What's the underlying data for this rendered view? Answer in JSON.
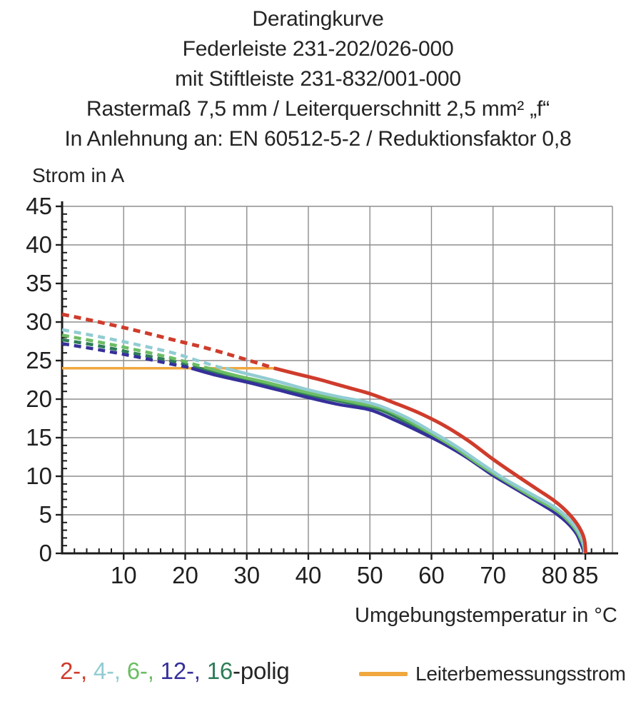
{
  "title": {
    "lines": [
      "Deratingkurve",
      "Federleiste 231-202/026-000",
      "mit Stiftleiste 231-832/001-000",
      "Rastermaß 7,5 mm / Leiterquerschnitt 2,5 mm² „f“",
      "In Anlehnung an: EN 60512-5-2 / Reduktionsfaktor 0,8"
    ]
  },
  "legend": {
    "parts": [
      {
        "text": "2-,",
        "color": "#cf3c2c"
      },
      {
        "text": " 4-,",
        "color": "#92ccd3"
      },
      {
        "text": " 6-,",
        "color": "#6cbd64"
      },
      {
        "text": " 12-,",
        "color": "#36309a"
      },
      {
        "text": " 16",
        "color": "#2e7d57"
      },
      {
        "text": "-polig",
        "color": "#242424"
      }
    ],
    "rated_current_label": "Leiterbemessungsstrom",
    "rated_current_color": "#f0a73e"
  },
  "chart_data": {
    "type": "line",
    "title": "Deratingkurve",
    "xlabel": "Umgebungstemperatur in °C",
    "ylabel": "Strom in A",
    "xlim": [
      0,
      89.4
    ],
    "ylim": [
      0,
      45
    ],
    "x_major_ticks": [
      10,
      20,
      30,
      40,
      50,
      60,
      70,
      80,
      85
    ],
    "x_minor_step": 2,
    "y_major_ticks": [
      0,
      5,
      10,
      15,
      20,
      25,
      30,
      35,
      40,
      45
    ],
    "y_minor_step": 1,
    "grid": {
      "x_lines": [
        10,
        20,
        30,
        40,
        50,
        60,
        70,
        80,
        89.4
      ],
      "y_lines": [
        5,
        10,
        15,
        20,
        25,
        30,
        35,
        40,
        45
      ],
      "color": "#8d8d8d"
    },
    "axis_color": "#1c1c1c",
    "legend_position": "bottom",
    "series": [
      {
        "name": "Leiterbemessungsstrom",
        "color": "#f0a73e",
        "width": 3.5,
        "segments": [
          {
            "dashed": false,
            "points": [
              [
                0,
                24
              ],
              [
                34.5,
                24
              ]
            ]
          }
        ]
      },
      {
        "name": "16-polig",
        "color": "#2e7d57",
        "width": 4.5,
        "segments": [
          {
            "dashed": true,
            "points": [
              [
                0,
                27.7
              ],
              [
                6,
                26.9
              ],
              [
                12,
                25.9
              ],
              [
                18,
                24.9
              ],
              [
                21,
                24.3
              ],
              [
                22.3,
                24
              ]
            ]
          },
          {
            "dashed": false,
            "points": [
              [
                22.3,
                24
              ],
              [
                26,
                23.2
              ],
              [
                31,
                22.4
              ],
              [
                36,
                21.4
              ],
              [
                41,
                20.4
              ],
              [
                46,
                19.6
              ],
              [
                51,
                18.8
              ],
              [
                55,
                17.4
              ],
              [
                60,
                15.3
              ],
              [
                64,
                13.4
              ],
              [
                68,
                11.2
              ],
              [
                72,
                9.2
              ],
              [
                76,
                7.3
              ],
              [
                80,
                5.5
              ],
              [
                82,
                4.2
              ],
              [
                83.5,
                2.8
              ],
              [
                84.2,
                1.6
              ],
              [
                84.7,
                0.6
              ],
              [
                84.8,
                0
              ]
            ]
          }
        ]
      },
      {
        "name": "12-polig",
        "color": "#36309a",
        "width": 4.5,
        "segments": [
          {
            "dashed": true,
            "points": [
              [
                0,
                27.2
              ],
              [
                6,
                26.4
              ],
              [
                12,
                25.5
              ],
              [
                18,
                24.5
              ],
              [
                20,
                24.2
              ],
              [
                21,
                24
              ]
            ]
          },
          {
            "dashed": false,
            "points": [
              [
                21,
                24
              ],
              [
                25,
                23.1
              ],
              [
                30,
                22.2
              ],
              [
                35,
                21.2
              ],
              [
                40,
                20.2
              ],
              [
                45,
                19.3
              ],
              [
                50,
                18.6
              ],
              [
                54,
                17.3
              ],
              [
                58,
                15.8
              ],
              [
                62,
                14.2
              ],
              [
                66,
                12.3
              ],
              [
                70,
                10.1
              ],
              [
                74,
                8.2
              ],
              [
                78,
                6.3
              ],
              [
                80,
                5.3
              ],
              [
                82,
                4.0
              ],
              [
                83.5,
                2.6
              ],
              [
                84.2,
                1.4
              ],
              [
                84.65,
                0.5
              ],
              [
                84.75,
                0
              ]
            ]
          }
        ]
      },
      {
        "name": "6-polig",
        "color": "#6cbd64",
        "width": 4.5,
        "segments": [
          {
            "dashed": true,
            "points": [
              [
                0,
                28.3
              ],
              [
                6,
                27.4
              ],
              [
                12,
                26.4
              ],
              [
                18,
                25.3
              ],
              [
                22,
                24.4
              ],
              [
                23.8,
                24
              ]
            ]
          },
          {
            "dashed": false,
            "points": [
              [
                23.8,
                24
              ],
              [
                28,
                23.1
              ],
              [
                33,
                22.2
              ],
              [
                38,
                21.2
              ],
              [
                43,
                20.3
              ],
              [
                48,
                19.5
              ],
              [
                52,
                18.8
              ],
              [
                56,
                17.3
              ],
              [
                60,
                15.5
              ],
              [
                64,
                13.6
              ],
              [
                68,
                11.4
              ],
              [
                72,
                9.4
              ],
              [
                76,
                7.5
              ],
              [
                80,
                5.7
              ],
              [
                82,
                4.4
              ],
              [
                83.5,
                3.0
              ],
              [
                84.3,
                1.8
              ],
              [
                84.75,
                0.8
              ],
              [
                84.85,
                0
              ]
            ]
          }
        ]
      },
      {
        "name": "4-polig",
        "color": "#92ccd3",
        "width": 4.5,
        "segments": [
          {
            "dashed": true,
            "points": [
              [
                0,
                29
              ],
              [
                6,
                28.1
              ],
              [
                12,
                27.1
              ],
              [
                18,
                26.0
              ],
              [
                22,
                25.0
              ],
              [
                25.5,
                24.15
              ],
              [
                26.5,
                24
              ]
            ]
          },
          {
            "dashed": false,
            "points": [
              [
                26.5,
                24
              ],
              [
                30,
                23.3
              ],
              [
                35,
                22.3
              ],
              [
                40,
                21.2
              ],
              [
                45,
                20.3
              ],
              [
                49,
                19.7
              ],
              [
                52,
                19.0
              ],
              [
                56,
                17.6
              ],
              [
                60,
                15.8
              ],
              [
                64,
                13.9
              ],
              [
                68,
                11.7
              ],
              [
                72,
                9.6
              ],
              [
                76,
                7.8
              ],
              [
                80,
                6.0
              ],
              [
                82,
                4.7
              ],
              [
                83.5,
                3.3
              ],
              [
                84.4,
                2.0
              ],
              [
                84.8,
                0.9
              ],
              [
                84.9,
                0
              ]
            ]
          }
        ]
      },
      {
        "name": "2-polig",
        "color": "#cf3c2c",
        "width": 5,
        "segments": [
          {
            "dashed": true,
            "points": [
              [
                0,
                31
              ],
              [
                6,
                30
              ],
              [
                12,
                28.9
              ],
              [
                18,
                27.7
              ],
              [
                24,
                26.5
              ],
              [
                30,
                25.1
              ],
              [
                34.5,
                24
              ]
            ]
          },
          {
            "dashed": false,
            "points": [
              [
                34.5,
                24
              ],
              [
                38,
                23.3
              ],
              [
                42,
                22.5
              ],
              [
                46,
                21.6
              ],
              [
                50,
                20.7
              ],
              [
                54,
                19.5
              ],
              [
                58,
                18.2
              ],
              [
                62,
                16.6
              ],
              [
                66,
                14.6
              ],
              [
                70,
                12.2
              ],
              [
                74,
                10.0
              ],
              [
                77,
                8.4
              ],
              [
                80,
                6.8
              ],
              [
                82,
                5.4
              ],
              [
                83.5,
                4.0
              ],
              [
                84.5,
                2.6
              ],
              [
                84.9,
                1.5
              ],
              [
                85.05,
                0
              ]
            ]
          }
        ]
      }
    ]
  }
}
